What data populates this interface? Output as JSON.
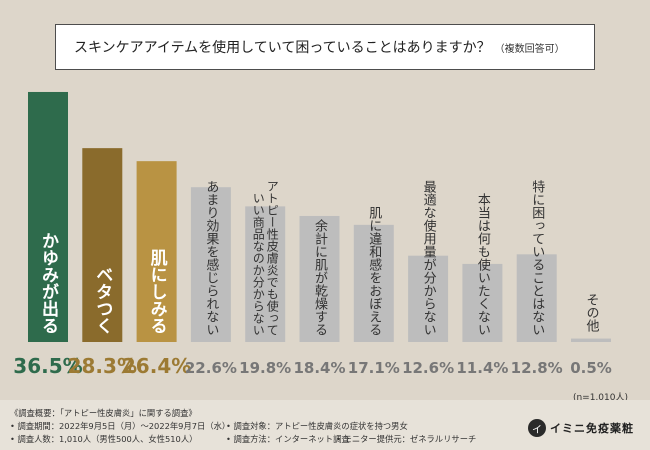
{
  "question": {
    "text": "スキンケアアイテムを使用していて困っていることはありますか？",
    "note": "（複数回答可）"
  },
  "sample_size": "(n=1,010人)",
  "colors": {
    "top1": "#2e6b4c",
    "top2": "#8a6b2c",
    "top3": "#b99343",
    "other": "#bdbdbd",
    "top_value_text": "#2e6b4c",
    "gold_value_text": "#9c7a33",
    "gray_value_text": "#777777"
  },
  "chart_data": {
    "type": "bar",
    "categories": [
      "かゆみが出る",
      "ベタつく",
      "肌にしみる",
      "あまり効果を感じられない",
      "アトピー性皮膚炎でも使っていい商品なのか分からない",
      "余計に肌が乾燥する",
      "肌に違和感をおぼえる",
      "最適な使用量が分からない",
      "本当は何も使いたくない",
      "特に困っていることはない",
      "その他"
    ],
    "values": [
      36.5,
      28.3,
      26.4,
      22.6,
      19.8,
      18.4,
      17.1,
      12.6,
      11.4,
      12.8,
      0.5
    ],
    "value_labels": [
      "36.5%",
      "28.3%",
      "26.4%",
      "22.6%",
      "19.8%",
      "18.4%",
      "17.1%",
      "12.6%",
      "11.4%",
      "12.8%",
      "0.5%"
    ],
    "bar_label_lines": [
      [
        "かゆみが出る"
      ],
      [
        "ベタつく"
      ],
      [
        "肌にしみる"
      ],
      [
        "あまり効果を感じられない"
      ],
      [
        "アトピー性皮膚炎でも使って",
        "いい商品なのか分からない"
      ],
      [
        "余計に肌が乾燥する"
      ],
      [
        "肌に違和感をおぼえる"
      ],
      [
        "最適な使用量が分からない"
      ],
      [
        "本当は何も使いたくない"
      ],
      [
        "特に困っていることはない"
      ],
      [
        "その他"
      ]
    ],
    "ylim": [
      0,
      40
    ],
    "title": "",
    "xlabel": "",
    "ylabel": "",
    "grid": false,
    "legend": "none"
  },
  "footnotes": {
    "overview": "《調査概要：「アトピー性皮膚炎」に関する調査》",
    "period": "• 調査期間：2022年9月5日（月）～2022年9月7日（水）",
    "target": "• 調査対象：アトピー性皮膚炎の症状を持つ男女",
    "people": "• 調査人数：1,010人（男性500人、女性510人）",
    "method": "• 調査方法：インターネット調査",
    "monitor": "• モニター提供元：ゼネラルリサーチ"
  },
  "logo": {
    "mark": "イ",
    "text": "イミニ免疫薬粧"
  }
}
